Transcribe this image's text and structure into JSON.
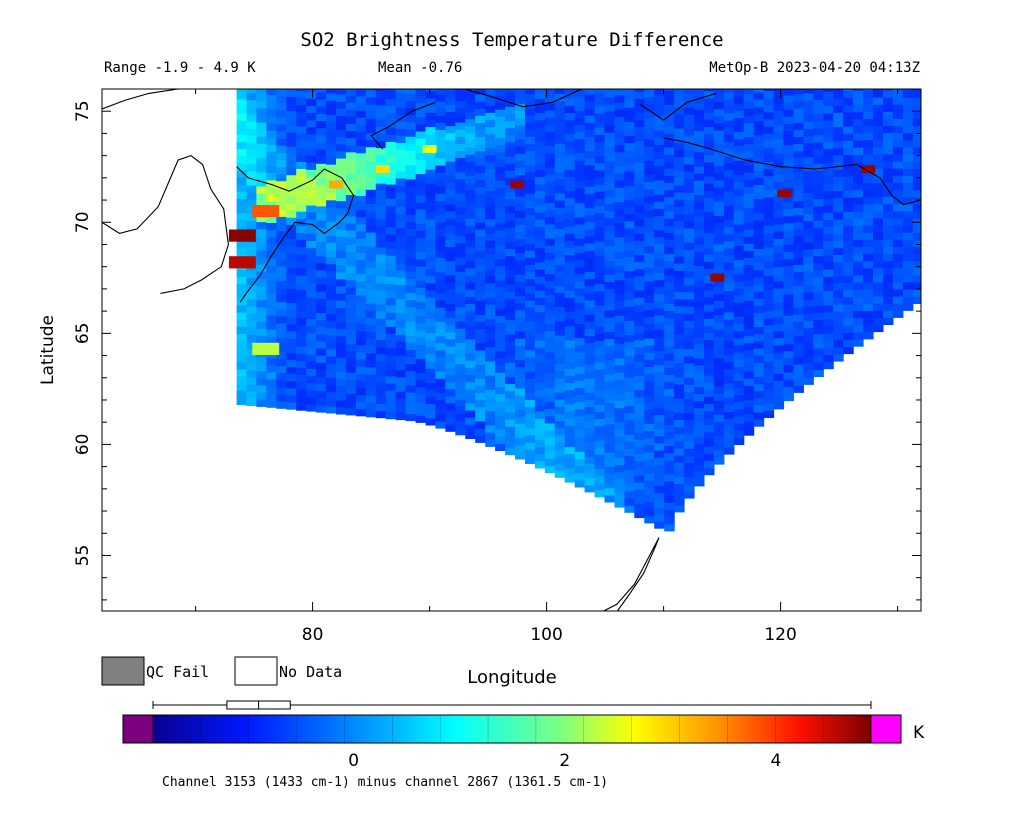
{
  "chart_data": {
    "type": "heatmap",
    "title": "SO2 Brightness Temperature Difference",
    "subtitle": {
      "range": "Range -1.9 - 4.9 K",
      "mean": "Mean -0.76",
      "source": "MetOp-B 2023-04-20 04:13Z"
    },
    "xlabel": "Longitude",
    "ylabel": "Latitude",
    "xlim": [
      62,
      132
    ],
    "ylim": [
      52.5,
      76
    ],
    "x_ticks": [
      80,
      100,
      120
    ],
    "y_ticks": [
      55,
      60,
      65,
      70,
      75
    ],
    "legend": {
      "qc_fail": "QC Fail",
      "no_data": "No Data"
    },
    "colorbar": {
      "unit": "K",
      "min": -1.9,
      "max": 4.9,
      "ticks": [
        0,
        2,
        4
      ],
      "colors": [
        "#7a0080",
        "#0a0090",
        "#0030ff",
        "#00a0ff",
        "#00ffff",
        "#7fff7f",
        "#ffff00",
        "#ff9000",
        "#ff1000",
        "#780000",
        "#ff00ff"
      ],
      "caption": "Channel 3153 (1433 cm-1) minus channel 2867 (1361.5 cm-1)",
      "boxplot": {
        "min": -1.9,
        "q1": -1.2,
        "median": -0.9,
        "q3": -0.6,
        "max": 4.9
      }
    },
    "swath_edge": {
      "west_lon": 73.5,
      "south_lat_start": 61.8,
      "south_end": [
        110,
        56
      ]
    },
    "hotspots": [
      {
        "lon": 74,
        "lat": 69.4,
        "value": 4.8
      },
      {
        "lon": 74,
        "lat": 68.2,
        "value": 4.5
      },
      {
        "lon": 76,
        "lat": 70.5,
        "value": 3.6
      },
      {
        "lon": 82,
        "lat": 71.7,
        "value": 3.0
      },
      {
        "lon": 86,
        "lat": 72.4,
        "value": 2.6
      },
      {
        "lon": 90,
        "lat": 73.3,
        "value": 2.2
      },
      {
        "lon": 76,
        "lat": 64.3,
        "value": 1.9
      },
      {
        "lon": 97.5,
        "lat": 71.7,
        "value": 4.7
      },
      {
        "lon": 114.6,
        "lat": 67.5,
        "value": 4.7
      },
      {
        "lon": 120.3,
        "lat": 71.3,
        "value": 4.7
      },
      {
        "lon": 127.5,
        "lat": 72.4,
        "value": 4.7
      }
    ]
  }
}
